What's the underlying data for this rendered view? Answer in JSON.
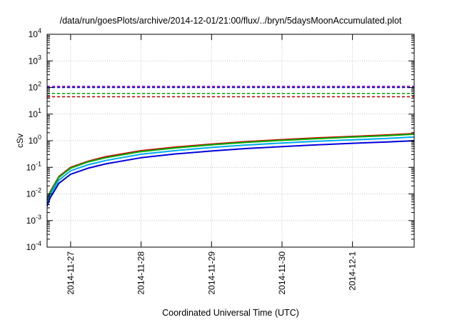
{
  "chart_data": {
    "type": "line",
    "title": "/data/run/goesPlots/archive/2014-12-01/21:00/flux/../bryn/5daysMoonAccumulated.plot",
    "xlabel": "Coordinated Universal Time (UTC)",
    "ylabel": "cSv",
    "yscale": "log",
    "ylim_exponent": [
      -4,
      4
    ],
    "y_ticks": [
      {
        "base": "10",
        "exp": "-4"
      },
      {
        "base": "10",
        "exp": "-3"
      },
      {
        "base": "10",
        "exp": "-2"
      },
      {
        "base": "10",
        "exp": "-1"
      },
      {
        "base": "10",
        "exp": "0"
      },
      {
        "base": "10",
        "exp": "1"
      },
      {
        "base": "10",
        "exp": "2"
      },
      {
        "base": "10",
        "exp": "3"
      },
      {
        "base": "10",
        "exp": "4"
      }
    ],
    "xlim": [
      "2014-11-26T16:00",
      "2014-12-01T21:00"
    ],
    "x_ticks": [
      {
        "label": "2014-11-27",
        "date": "2014-11-27T00:00"
      },
      {
        "label": "2014-11-28",
        "date": "2014-11-28T00:00"
      },
      {
        "label": "2014-11-29",
        "date": "2014-11-29T00:00"
      },
      {
        "label": "2014-11-30",
        "date": "2014-11-30T00:00"
      },
      {
        "label": "2014-12-1",
        "date": "2014-12-01T00:00"
      }
    ],
    "grid": true,
    "x": [
      "2014-11-26T16:00",
      "2014-11-26T17:00",
      "2014-11-26T20:00",
      "2014-11-27T00:00",
      "2014-11-27T06:00",
      "2014-11-27T12:00",
      "2014-11-28T00:00",
      "2014-11-28T12:00",
      "2014-11-29T00:00",
      "2014-11-29T12:00",
      "2014-11-30T00:00",
      "2014-11-30T12:00",
      "2014-12-01T00:00",
      "2014-12-01T12:00",
      "2014-12-01T21:00"
    ],
    "series": [
      {
        "color": "#d00000",
        "values": [
          0.006,
          0.012,
          0.045,
          0.1,
          0.17,
          0.25,
          0.42,
          0.58,
          0.75,
          0.93,
          1.1,
          1.28,
          1.45,
          1.65,
          1.85
        ]
      },
      {
        "color": "#00b000",
        "values": [
          0.0055,
          0.011,
          0.042,
          0.093,
          0.16,
          0.23,
          0.39,
          0.54,
          0.7,
          0.87,
          1.03,
          1.2,
          1.37,
          1.55,
          1.75
        ]
      },
      {
        "color": "#00aaee",
        "values": [
          0.0045,
          0.009,
          0.033,
          0.074,
          0.125,
          0.18,
          0.31,
          0.43,
          0.56,
          0.69,
          0.82,
          0.95,
          1.08,
          1.22,
          1.38
        ]
      },
      {
        "color": "#0000dd",
        "values": [
          0.0035,
          0.007,
          0.025,
          0.055,
          0.093,
          0.135,
          0.23,
          0.32,
          0.41,
          0.51,
          0.6,
          0.7,
          0.8,
          0.9,
          1.0
        ]
      }
    ],
    "thresholds": [
      {
        "color": "#9900cc",
        "value": 110
      },
      {
        "color": "#0000dd",
        "value": 100
      },
      {
        "color": "#00b000",
        "value": 60
      },
      {
        "color": "#d00000",
        "value": 45
      }
    ]
  }
}
